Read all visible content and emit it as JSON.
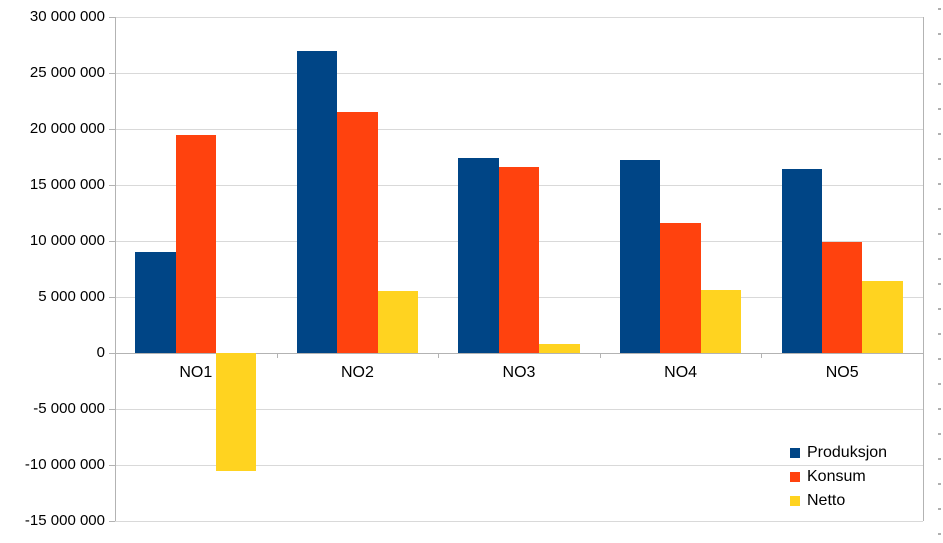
{
  "chart_data": {
    "type": "bar",
    "title": "",
    "xlabel": "",
    "ylabel": "",
    "categories": [
      "NO1",
      "NO2",
      "NO3",
      "NO4",
      "NO5"
    ],
    "series": [
      {
        "name": "Produksjon",
        "color": "#004586",
        "values": [
          9000000,
          27000000,
          17400000,
          17200000,
          16400000
        ]
      },
      {
        "name": "Konsum",
        "color": "#FF420E",
        "values": [
          19500000,
          21500000,
          16600000,
          11600000,
          9900000
        ]
      },
      {
        "name": "Netto",
        "color": "#FFD320",
        "values": [
          -10500000,
          5500000,
          800000,
          5600000,
          6400000
        ]
      }
    ],
    "ylim": [
      -15000000,
      30000000
    ],
    "ytick_step": 5000000,
    "y_tick_labels": [
      "30 000 000",
      "25 000 000",
      "20 000 000",
      "15 000 000",
      "10 000 000",
      "5 000 000",
      "0",
      "-5 000 000",
      "-10 000 000",
      "-15 000 000"
    ],
    "grid": true,
    "legend_position": "bottom-right"
  },
  "colors": {
    "gridline": "#d9d9d9",
    "axis": "#b3b3b3",
    "text": "#000000",
    "background": "#ffffff"
  }
}
